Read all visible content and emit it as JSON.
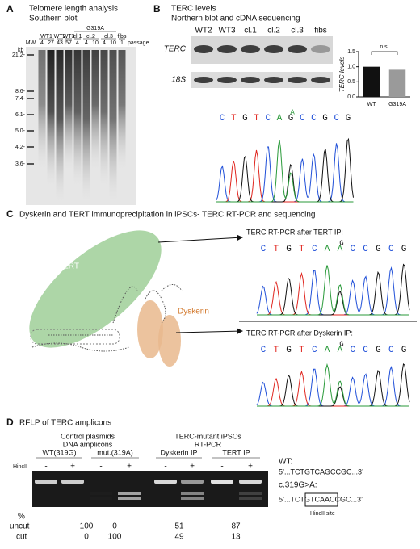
{
  "panel_a": {
    "label": "A",
    "title": "Telomere length analysis",
    "subtitle": "Southern blot",
    "mw_label": "MW",
    "kb_label": "kb",
    "group_label": "G319A",
    "passage_label": "passage",
    "groups": [
      {
        "name": "WT1",
        "passages": [
          "4",
          "27"
        ]
      },
      {
        "name": "WT2",
        "passages": [
          "43"
        ]
      },
      {
        "name": "WT3",
        "passages": [
          "57"
        ]
      },
      {
        "name": "cl.1",
        "passages": [
          "4"
        ]
      },
      {
        "name": "cl.2",
        "passages": [
          "4",
          "10"
        ]
      },
      {
        "name": "cl.3",
        "passages": [
          "4",
          "10"
        ]
      },
      {
        "name": "fibs",
        "passages": [
          "1"
        ]
      }
    ],
    "markers": [
      "21.2-",
      "8.6-",
      "7.4-",
      "6.1-",
      "5.0-",
      "4.2-",
      "3.6-"
    ]
  },
  "panel_b": {
    "label": "B",
    "title": "TERC levels",
    "subtitle": "Northern blot and cDNA sequencing",
    "lanes": [
      "WT2",
      "WT3",
      "cl.1",
      "cl.2",
      "cl.3",
      "fibs"
    ],
    "rows": [
      "TERC",
      "18S"
    ],
    "sequence": [
      "C",
      "T",
      "G",
      "T",
      "C",
      "A",
      "G",
      "C",
      "C",
      "G",
      "C",
      "G"
    ],
    "variant": "A"
  },
  "chart_data": {
    "type": "bar",
    "ylabel": "TERC levels",
    "categories": [
      "WT",
      "G319A"
    ],
    "values": [
      1.0,
      0.9
    ],
    "colors": [
      "#111111",
      "#9a9a9a"
    ],
    "ylim": [
      0,
      1.5
    ],
    "yticks": [
      {
        "value": 0,
        "label": "0.0"
      },
      {
        "value": 0.5,
        "label": "0.5"
      },
      {
        "value": 1,
        "label": "1.0"
      },
      {
        "value": 1.5,
        "label": "1.5"
      }
    ],
    "annotation": "n.s."
  },
  "panel_c": {
    "label": "C",
    "title": "Dyskerin and TERT immunoprecipitation in iPSCs- TERC RT-PCR and sequencing",
    "tert_label": "TERT",
    "dyskerin_label": "Dyskerin",
    "traces": [
      {
        "caption": "TERC RT-PCR after TERT IP:",
        "sequence": [
          "C",
          "T",
          "G",
          "T",
          "C",
          "A",
          "A",
          "C",
          "C",
          "G",
          "C",
          "G"
        ],
        "variant": "G"
      },
      {
        "caption": "TERC RT-PCR after Dyskerin IP:",
        "sequence": [
          "C",
          "T",
          "G",
          "T",
          "C",
          "A",
          "A",
          "C",
          "C",
          "G",
          "C",
          "G"
        ],
        "variant": "G"
      }
    ]
  },
  "panel_d": {
    "label": "D",
    "title": "RFLP of TERC amplicons",
    "groups": [
      {
        "title": [
          "Control plasmids",
          "DNA amplicons"
        ],
        "subgroups": [
          "WT(319G)",
          "mut.(319A)"
        ]
      },
      {
        "title": [
          "TERC-mutant iPSCs",
          "RT-PCR"
        ],
        "subgroups": [
          "Dyskerin IP",
          "TERT IP"
        ]
      }
    ],
    "enzyme": "HincII",
    "lanes": [
      "-",
      "+",
      "-",
      "+",
      "-",
      "+",
      "-",
      "+"
    ],
    "percent_label": "%",
    "rows": [
      {
        "name": "uncut",
        "values": [
          100,
          0,
          51,
          87
        ]
      },
      {
        "name": "cut",
        "values": [
          0,
          100,
          49,
          13
        ]
      }
    ],
    "sequences": {
      "wt_label": "WT:",
      "wt": "5’...TCTGTCAGCCGC...3’",
      "mut_label": "c.319G>A:",
      "mut": "5’...TCTGTCAACCGC...3’",
      "site_label": "HincII site"
    }
  }
}
